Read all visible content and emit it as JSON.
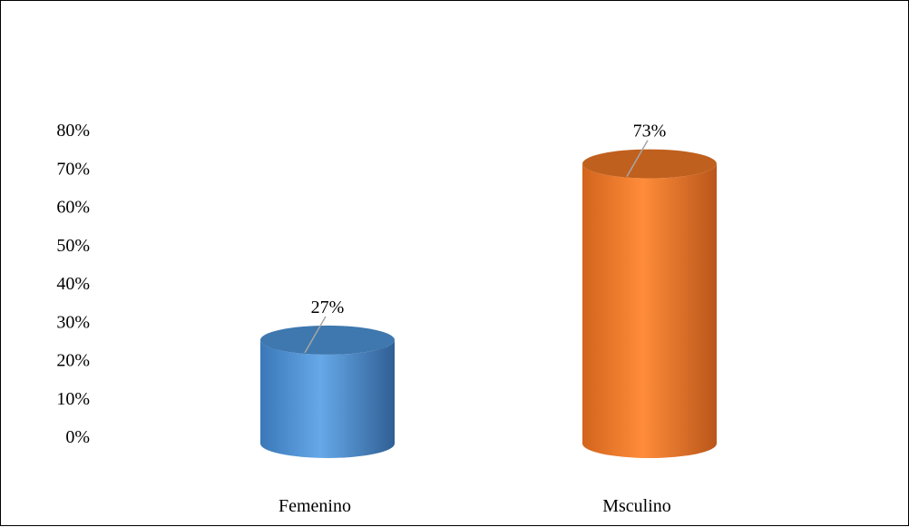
{
  "chart_data": {
    "type": "bar",
    "style": "3d-cylinder",
    "categories": [
      "Femenino",
      "Msculino"
    ],
    "values": [
      27,
      73
    ],
    "data_labels": [
      "27%",
      "73%"
    ],
    "series": [
      {
        "values": [
          27,
          73
        ]
      }
    ],
    "bar_colors": [
      "#5B9BD5",
      "#ED7D31"
    ],
    "y_ticks": [
      "0%",
      "10%",
      "20%",
      "30%",
      "40%",
      "50%",
      "60%",
      "70%",
      "80%"
    ],
    "ylim": [
      0,
      80
    ],
    "grid": false,
    "legend": "none",
    "title": "",
    "xlabel": "",
    "ylabel": ""
  }
}
